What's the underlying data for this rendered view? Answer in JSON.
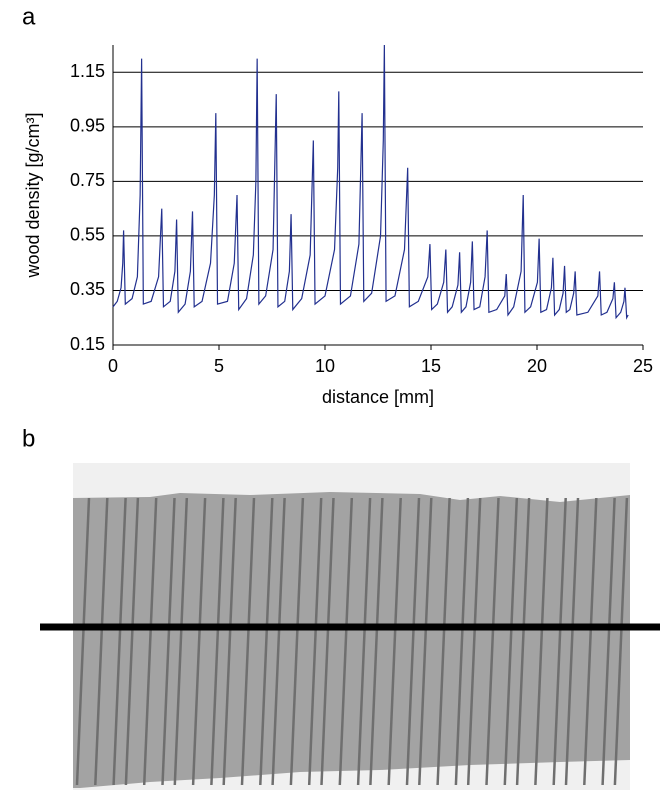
{
  "panel_labels": [
    "a",
    "b"
  ],
  "chart_data": {
    "type": "line",
    "xlabel": "distance [mm]",
    "ylabel": "wood density [g/cm³]",
    "xlim": [
      0,
      25
    ],
    "xticks": [
      0,
      5,
      10,
      15,
      20,
      25
    ],
    "ylim": [
      0.15,
      1.25
    ],
    "yticks": [
      0.15,
      0.35,
      0.55,
      0.75,
      0.95,
      1.15
    ],
    "grid": true,
    "color": "#22308f",
    "x": [
      0,
      0.2,
      0.38,
      0.46,
      0.5,
      0.58,
      0.9,
      1.15,
      1.28,
      1.35,
      1.43,
      1.8,
      2.15,
      2.3,
      2.38,
      2.7,
      2.92,
      3.0,
      3.08,
      3.4,
      3.65,
      3.75,
      3.83,
      4.2,
      4.6,
      4.78,
      4.85,
      4.93,
      5.4,
      5.72,
      5.85,
      5.93,
      6.3,
      6.62,
      6.74,
      6.8,
      6.88,
      7.2,
      7.55,
      7.7,
      7.78,
      8.1,
      8.32,
      8.4,
      8.48,
      8.9,
      9.3,
      9.45,
      9.53,
      10.0,
      10.45,
      10.6,
      10.65,
      10.73,
      11.2,
      11.6,
      11.75,
      11.83,
      12.2,
      12.62,
      12.75,
      12.8,
      12.88,
      13.3,
      13.75,
      13.9,
      13.98,
      14.4,
      14.85,
      14.95,
      15.03,
      15.3,
      15.6,
      15.7,
      15.78,
      16.0,
      16.27,
      16.35,
      16.43,
      16.65,
      16.87,
      16.95,
      17.03,
      17.3,
      17.55,
      17.65,
      17.73,
      18.1,
      18.48,
      18.55,
      18.63,
      18.9,
      19.25,
      19.35,
      19.43,
      19.7,
      20.02,
      20.1,
      20.18,
      20.45,
      20.68,
      20.75,
      20.83,
      21.05,
      21.23,
      21.3,
      21.38,
      21.55,
      21.73,
      21.8,
      21.88,
      22.4,
      22.87,
      22.95,
      23.03,
      23.3,
      23.58,
      23.65,
      23.73,
      23.95,
      24.1,
      24.15,
      24.23,
      24.3
    ],
    "values": [
      0.29,
      0.31,
      0.36,
      0.45,
      0.57,
      0.3,
      0.32,
      0.4,
      0.7,
      1.2,
      0.3,
      0.31,
      0.4,
      0.65,
      0.29,
      0.31,
      0.42,
      0.61,
      0.27,
      0.3,
      0.42,
      0.64,
      0.29,
      0.31,
      0.45,
      0.7,
      1.0,
      0.3,
      0.31,
      0.45,
      0.7,
      0.28,
      0.32,
      0.48,
      0.75,
      1.2,
      0.3,
      0.33,
      0.5,
      1.07,
      0.29,
      0.31,
      0.42,
      0.63,
      0.28,
      0.32,
      0.48,
      0.9,
      0.3,
      0.33,
      0.5,
      0.8,
      1.08,
      0.3,
      0.33,
      0.52,
      1.0,
      0.31,
      0.34,
      0.55,
      0.9,
      1.25,
      0.31,
      0.33,
      0.5,
      0.8,
      0.29,
      0.31,
      0.4,
      0.52,
      0.28,
      0.3,
      0.38,
      0.5,
      0.27,
      0.29,
      0.37,
      0.49,
      0.27,
      0.29,
      0.38,
      0.53,
      0.28,
      0.29,
      0.4,
      0.57,
      0.27,
      0.28,
      0.33,
      0.41,
      0.26,
      0.29,
      0.42,
      0.7,
      0.27,
      0.29,
      0.38,
      0.54,
      0.27,
      0.28,
      0.36,
      0.47,
      0.26,
      0.28,
      0.34,
      0.44,
      0.27,
      0.28,
      0.34,
      0.42,
      0.26,
      0.27,
      0.33,
      0.42,
      0.26,
      0.27,
      0.32,
      0.38,
      0.25,
      0.27,
      0.31,
      0.36,
      0.25,
      0.26
    ]
  }
}
